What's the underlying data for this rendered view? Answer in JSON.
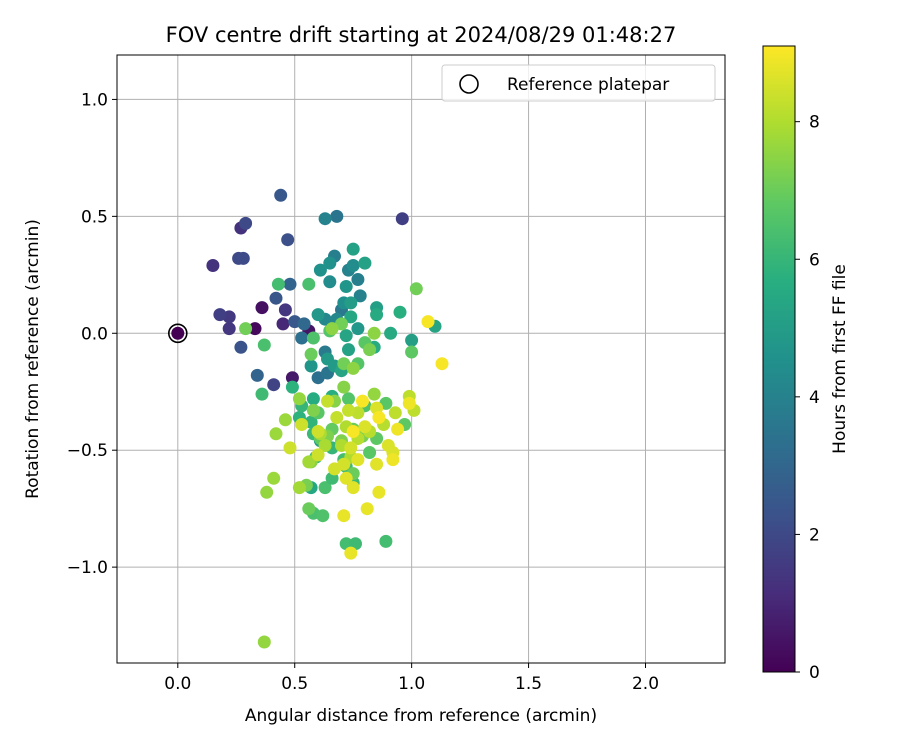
{
  "chart_data": {
    "type": "scatter",
    "title": "FOV centre drift starting at 2024/08/29 01:48:27",
    "xlabel": "Angular distance from reference (arcmin)",
    "ylabel": "Rotation from reference (arcmin)",
    "xlim": [
      -0.26,
      2.34
    ],
    "ylim": [
      -1.41,
      1.19
    ],
    "x_ticks": [
      0.0,
      0.5,
      1.0,
      1.5,
      2.0
    ],
    "x_tick_labels": [
      "0.0",
      "0.5",
      "1.0",
      "1.5",
      "2.0"
    ],
    "y_ticks": [
      1.0,
      0.5,
      0.0,
      -0.5,
      -1.0
    ],
    "y_tick_labels": [
      "1.0",
      "0.5",
      "0.0",
      "−0.5",
      "−1.0"
    ],
    "grid": true,
    "legend": {
      "placement": "top-right",
      "entries": [
        "Reference platepar"
      ]
    },
    "reference_point": {
      "x": 0.0,
      "y": 0.0
    },
    "colorbar": {
      "label": "Hours from first FF file",
      "range": [
        0,
        9.1
      ],
      "ticks": [
        0,
        2,
        4,
        6,
        8
      ],
      "colormap": "viridis"
    },
    "points": [
      {
        "x": 0.33,
        "y": 0.02,
        "h": 0.2
      },
      {
        "x": 0.36,
        "y": 0.11,
        "h": 0.4
      },
      {
        "x": 0.49,
        "y": -0.19,
        "h": 0.6
      },
      {
        "x": 0.56,
        "y": 0.01,
        "h": 0.5
      },
      {
        "x": 0.45,
        "y": 0.04,
        "h": 1.0
      },
      {
        "x": 0.15,
        "y": 0.29,
        "h": 1.3
      },
      {
        "x": 0.27,
        "y": 0.45,
        "h": 1.3
      },
      {
        "x": 0.22,
        "y": 0.02,
        "h": 1.4
      },
      {
        "x": 0.22,
        "y": 0.07,
        "h": 1.5
      },
      {
        "x": 0.18,
        "y": 0.08,
        "h": 1.7
      },
      {
        "x": 0.46,
        "y": 0.1,
        "h": 1.4
      },
      {
        "x": 0.41,
        "y": -0.22,
        "h": 1.8
      },
      {
        "x": 0.29,
        "y": 0.47,
        "h": 2.0
      },
      {
        "x": 0.26,
        "y": 0.32,
        "h": 2.0
      },
      {
        "x": 0.28,
        "y": 0.32,
        "h": 2.1
      },
      {
        "x": 0.47,
        "y": 0.4,
        "h": 2.2
      },
      {
        "x": 0.44,
        "y": 0.59,
        "h": 2.5
      },
      {
        "x": 0.96,
        "y": 0.49,
        "h": 1.7
      },
      {
        "x": 0.27,
        "y": -0.06,
        "h": 2.3
      },
      {
        "x": 0.42,
        "y": 0.15,
        "h": 2.4
      },
      {
        "x": 0.5,
        "y": 0.05,
        "h": 2.5
      },
      {
        "x": 0.48,
        "y": 0.21,
        "h": 2.9
      },
      {
        "x": 0.34,
        "y": -0.18,
        "h": 2.9
      },
      {
        "x": 0.54,
        "y": 0.04,
        "h": 3.1
      },
      {
        "x": 0.53,
        "y": -0.02,
        "h": 3.3
      },
      {
        "x": 0.6,
        "y": -0.19,
        "h": 3.3
      },
      {
        "x": 0.64,
        "y": -0.17,
        "h": 3.5
      },
      {
        "x": 0.68,
        "y": 0.5,
        "h": 3.5
      },
      {
        "x": 0.63,
        "y": 0.49,
        "h": 4.0
      },
      {
        "x": 0.7,
        "y": 0.1,
        "h": 3.6
      },
      {
        "x": 0.63,
        "y": -0.08,
        "h": 3.7
      },
      {
        "x": 0.67,
        "y": 0.33,
        "h": 3.9
      },
      {
        "x": 0.73,
        "y": 0.27,
        "h": 4.0
      },
      {
        "x": 0.77,
        "y": 0.23,
        "h": 3.9
      },
      {
        "x": 0.78,
        "y": 0.16,
        "h": 4.0
      },
      {
        "x": 0.75,
        "y": 0.29,
        "h": 4.4
      },
      {
        "x": 0.65,
        "y": 0.22,
        "h": 4.4
      },
      {
        "x": 0.61,
        "y": 0.27,
        "h": 4.6
      },
      {
        "x": 0.65,
        "y": 0.3,
        "h": 4.6
      },
      {
        "x": 0.72,
        "y": 0.2,
        "h": 4.7
      },
      {
        "x": 0.71,
        "y": 0.13,
        "h": 4.5
      },
      {
        "x": 0.68,
        "y": 0.06,
        "h": 4.2
      },
      {
        "x": 0.63,
        "y": 0.06,
        "h": 4.2
      },
      {
        "x": 0.6,
        "y": 0.08,
        "h": 4.8
      },
      {
        "x": 0.57,
        "y": -0.14,
        "h": 4.7
      },
      {
        "x": 0.64,
        "y": -0.11,
        "h": 4.9
      },
      {
        "x": 0.67,
        "y": -0.14,
        "h": 4.9
      },
      {
        "x": 0.74,
        "y": 0.13,
        "h": 5.0
      },
      {
        "x": 0.77,
        "y": 0.02,
        "h": 4.8
      },
      {
        "x": 0.85,
        "y": 0.11,
        "h": 5.1
      },
      {
        "x": 0.75,
        "y": 0.36,
        "h": 5.2
      },
      {
        "x": 0.8,
        "y": 0.3,
        "h": 5.2
      },
      {
        "x": 0.74,
        "y": 0.07,
        "h": 5.4
      },
      {
        "x": 0.72,
        "y": -0.01,
        "h": 5.3
      },
      {
        "x": 0.73,
        "y": -0.07,
        "h": 5.2
      },
      {
        "x": 0.85,
        "y": 0.08,
        "h": 5.5
      },
      {
        "x": 0.91,
        "y": 0.0,
        "h": 5.5
      },
      {
        "x": 0.84,
        "y": -0.06,
        "h": 5.6
      },
      {
        "x": 0.95,
        "y": 0.09,
        "h": 5.7
      },
      {
        "x": 1.1,
        "y": 0.03,
        "h": 5.3
      },
      {
        "x": 1.0,
        "y": -0.03,
        "h": 5.1
      },
      {
        "x": 0.7,
        "y": -0.16,
        "h": 5.3
      },
      {
        "x": 0.81,
        "y": -0.42,
        "h": 5.0
      },
      {
        "x": 0.61,
        "y": -0.46,
        "h": 5.1
      },
      {
        "x": 0.57,
        "y": -0.66,
        "h": 5.4
      },
      {
        "x": 0.58,
        "y": -0.28,
        "h": 5.6
      },
      {
        "x": 0.66,
        "y": -0.27,
        "h": 5.7
      },
      {
        "x": 0.57,
        "y": -0.38,
        "h": 5.9
      },
      {
        "x": 0.52,
        "y": -0.36,
        "h": 5.8
      },
      {
        "x": 0.49,
        "y": -0.23,
        "h": 5.8
      },
      {
        "x": 0.53,
        "y": -0.31,
        "h": 6.0
      },
      {
        "x": 0.58,
        "y": -0.43,
        "h": 6.1
      },
      {
        "x": 0.59,
        "y": -0.53,
        "h": 6.1
      },
      {
        "x": 0.66,
        "y": -0.49,
        "h": 6.0
      },
      {
        "x": 0.72,
        "y": -0.57,
        "h": 6.2
      },
      {
        "x": 0.75,
        "y": -0.64,
        "h": 6.1
      },
      {
        "x": 0.71,
        "y": -0.54,
        "h": 6.3
      },
      {
        "x": 0.63,
        "y": -0.66,
        "h": 6.4
      },
      {
        "x": 0.66,
        "y": -0.62,
        "h": 6.2
      },
      {
        "x": 0.72,
        "y": -0.9,
        "h": 6.3
      },
      {
        "x": 0.76,
        "y": -0.9,
        "h": 6.2
      },
      {
        "x": 0.89,
        "y": -0.89,
        "h": 6.3
      },
      {
        "x": 0.58,
        "y": -0.77,
        "h": 6.4
      },
      {
        "x": 0.62,
        "y": -0.78,
        "h": 6.5
      },
      {
        "x": 0.36,
        "y": -0.26,
        "h": 6.2
      },
      {
        "x": 0.43,
        "y": 0.21,
        "h": 6.3
      },
      {
        "x": 0.37,
        "y": -0.05,
        "h": 6.4
      },
      {
        "x": 0.56,
        "y": 0.21,
        "h": 6.4
      },
      {
        "x": 0.58,
        "y": -0.02,
        "h": 6.5
      },
      {
        "x": 0.65,
        "y": 0.01,
        "h": 6.6
      },
      {
        "x": 0.77,
        "y": -0.13,
        "h": 6.6
      },
      {
        "x": 0.8,
        "y": -0.04,
        "h": 6.7
      },
      {
        "x": 0.82,
        "y": -0.51,
        "h": 6.7
      },
      {
        "x": 0.85,
        "y": -0.45,
        "h": 6.8
      },
      {
        "x": 0.89,
        "y": -0.3,
        "h": 6.7
      },
      {
        "x": 0.97,
        "y": -0.39,
        "h": 6.8
      },
      {
        "x": 1.0,
        "y": -0.08,
        "h": 6.8
      },
      {
        "x": 0.8,
        "y": -0.31,
        "h": 6.5
      },
      {
        "x": 0.73,
        "y": -0.28,
        "h": 6.6
      },
      {
        "x": 0.6,
        "y": -0.34,
        "h": 6.7
      },
      {
        "x": 0.61,
        "y": -0.45,
        "h": 6.9
      },
      {
        "x": 0.66,
        "y": -0.41,
        "h": 6.9
      },
      {
        "x": 0.56,
        "y": -0.75,
        "h": 7.0
      },
      {
        "x": 0.75,
        "y": -0.6,
        "h": 7.0
      },
      {
        "x": 0.57,
        "y": -0.09,
        "h": 7.0
      },
      {
        "x": 0.29,
        "y": 0.02,
        "h": 7.1
      },
      {
        "x": 0.75,
        "y": -0.41,
        "h": 7.0
      },
      {
        "x": 1.02,
        "y": 0.19,
        "h": 7.1
      },
      {
        "x": 0.7,
        "y": 0.04,
        "h": 7.1
      },
      {
        "x": 0.71,
        "y": -0.13,
        "h": 7.1
      },
      {
        "x": 0.82,
        "y": -0.07,
        "h": 7.2
      },
      {
        "x": 0.79,
        "y": -0.44,
        "h": 7.2
      },
      {
        "x": 0.7,
        "y": -0.46,
        "h": 7.3
      },
      {
        "x": 0.64,
        "y": -0.44,
        "h": 7.3
      },
      {
        "x": 0.58,
        "y": -0.33,
        "h": 7.3
      },
      {
        "x": 0.55,
        "y": -0.65,
        "h": 7.2
      },
      {
        "x": 0.57,
        "y": -0.55,
        "h": 7.4
      },
      {
        "x": 0.67,
        "y": -0.29,
        "h": 7.4
      },
      {
        "x": 0.71,
        "y": -0.23,
        "h": 7.4
      },
      {
        "x": 0.75,
        "y": -0.15,
        "h": 7.5
      },
      {
        "x": 0.66,
        "y": 0.02,
        "h": 7.5
      },
      {
        "x": 0.84,
        "y": 0.0,
        "h": 7.5
      },
      {
        "x": 0.84,
        "y": -0.26,
        "h": 7.6
      },
      {
        "x": 0.52,
        "y": -0.28,
        "h": 7.6
      },
      {
        "x": 0.38,
        "y": -0.68,
        "h": 7.6
      },
      {
        "x": 0.41,
        "y": -0.62,
        "h": 7.7
      },
      {
        "x": 0.42,
        "y": -0.43,
        "h": 7.7
      },
      {
        "x": 0.46,
        "y": -0.37,
        "h": 7.7
      },
      {
        "x": 0.52,
        "y": -0.66,
        "h": 7.8
      },
      {
        "x": 0.37,
        "y": -1.32,
        "h": 7.6
      },
      {
        "x": 0.56,
        "y": -0.55,
        "h": 7.8
      },
      {
        "x": 0.61,
        "y": -0.43,
        "h": 7.9
      },
      {
        "x": 0.63,
        "y": -0.48,
        "h": 7.9
      },
      {
        "x": 0.7,
        "y": -0.48,
        "h": 8.0
      },
      {
        "x": 0.72,
        "y": -0.4,
        "h": 8.0
      },
      {
        "x": 0.74,
        "y": -0.53,
        "h": 8.0
      },
      {
        "x": 0.77,
        "y": -0.45,
        "h": 8.1
      },
      {
        "x": 0.82,
        "y": -0.42,
        "h": 8.1
      },
      {
        "x": 0.88,
        "y": -0.39,
        "h": 8.1
      },
      {
        "x": 0.93,
        "y": -0.34,
        "h": 8.2
      },
      {
        "x": 0.99,
        "y": -0.27,
        "h": 8.2
      },
      {
        "x": 1.01,
        "y": -0.33,
        "h": 8.2
      },
      {
        "x": 0.77,
        "y": -0.34,
        "h": 8.2
      },
      {
        "x": 0.73,
        "y": -0.33,
        "h": 8.3
      },
      {
        "x": 0.68,
        "y": -0.36,
        "h": 8.3
      },
      {
        "x": 0.64,
        "y": -0.29,
        "h": 8.3
      },
      {
        "x": 0.6,
        "y": -0.42,
        "h": 8.4
      },
      {
        "x": 0.53,
        "y": -0.39,
        "h": 8.4
      },
      {
        "x": 0.48,
        "y": -0.49,
        "h": 8.4
      },
      {
        "x": 0.6,
        "y": -0.52,
        "h": 8.4
      },
      {
        "x": 0.67,
        "y": -0.58,
        "h": 8.5
      },
      {
        "x": 0.71,
        "y": -0.56,
        "h": 8.5
      },
      {
        "x": 0.74,
        "y": -0.49,
        "h": 8.5
      },
      {
        "x": 0.8,
        "y": -0.4,
        "h": 8.6
      },
      {
        "x": 0.85,
        "y": -0.32,
        "h": 8.6
      },
      {
        "x": 0.9,
        "y": -0.48,
        "h": 8.6
      },
      {
        "x": 0.92,
        "y": -0.51,
        "h": 8.6
      },
      {
        "x": 0.85,
        "y": -0.56,
        "h": 8.7
      },
      {
        "x": 0.77,
        "y": -0.54,
        "h": 8.7
      },
      {
        "x": 0.72,
        "y": -0.62,
        "h": 8.7
      },
      {
        "x": 0.75,
        "y": -0.66,
        "h": 8.7
      },
      {
        "x": 0.86,
        "y": -0.68,
        "h": 8.8
      },
      {
        "x": 0.81,
        "y": -0.75,
        "h": 8.8
      },
      {
        "x": 0.71,
        "y": -0.78,
        "h": 8.8
      },
      {
        "x": 0.74,
        "y": -0.94,
        "h": 8.8
      },
      {
        "x": 0.92,
        "y": -0.54,
        "h": 8.9
      },
      {
        "x": 0.94,
        "y": -0.41,
        "h": 8.9
      },
      {
        "x": 0.99,
        "y": -0.3,
        "h": 8.9
      },
      {
        "x": 0.86,
        "y": -0.36,
        "h": 9.0
      },
      {
        "x": 0.79,
        "y": -0.29,
        "h": 9.0
      },
      {
        "x": 0.75,
        "y": -0.42,
        "h": 9.0
      },
      {
        "x": 1.07,
        "y": 0.05,
        "h": 9.0
      },
      {
        "x": 1.13,
        "y": -0.13,
        "h": 9.0
      }
    ]
  }
}
